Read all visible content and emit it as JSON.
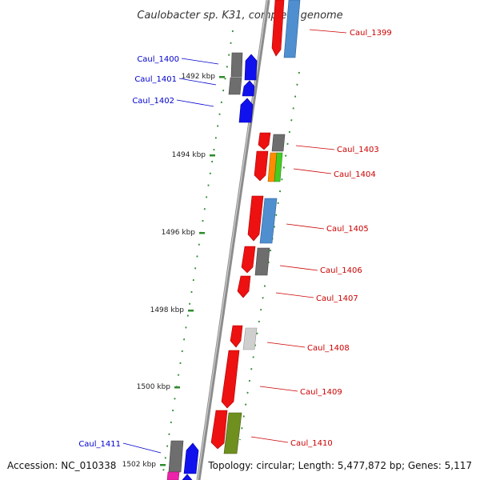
{
  "title": "Caulobacter sp. K31, complete genome",
  "footer": {
    "accession": "Accession: NC_010338",
    "topology": "Topology: circular; Length: 5,477,872 bp; Genes: 5,117"
  },
  "colors": {
    "backbone": "#8c8c8c",
    "ticks": "#2e8b2e",
    "label_blue": "#0000cc",
    "label_red": "#cc0000"
  },
  "ruler": [
    {
      "label": "1492 kbp"
    },
    {
      "label": "1494 kbp"
    },
    {
      "label": "1496 kbp"
    },
    {
      "label": "1498 kbp"
    },
    {
      "label": "1500 kbp"
    },
    {
      "label": "1502 kbp"
    }
  ],
  "genes": [
    {
      "label": "Caul_1399",
      "color": "red"
    },
    {
      "label": "Caul_1400",
      "color": "blue"
    },
    {
      "label": "Caul_1401",
      "color": "blue"
    },
    {
      "label": "Caul_1402",
      "color": "blue"
    },
    {
      "label": "Caul_1403",
      "color": "red"
    },
    {
      "label": "Caul_1404",
      "color": "red"
    },
    {
      "label": "Caul_1405",
      "color": "red"
    },
    {
      "label": "Caul_1406",
      "color": "red"
    },
    {
      "label": "Caul_1407",
      "color": "red"
    },
    {
      "label": "Caul_1408",
      "color": "red"
    },
    {
      "label": "Caul_1409",
      "color": "red"
    },
    {
      "label": "Caul_1410",
      "color": "red"
    },
    {
      "label": "Caul_1411",
      "color": "blue"
    }
  ]
}
